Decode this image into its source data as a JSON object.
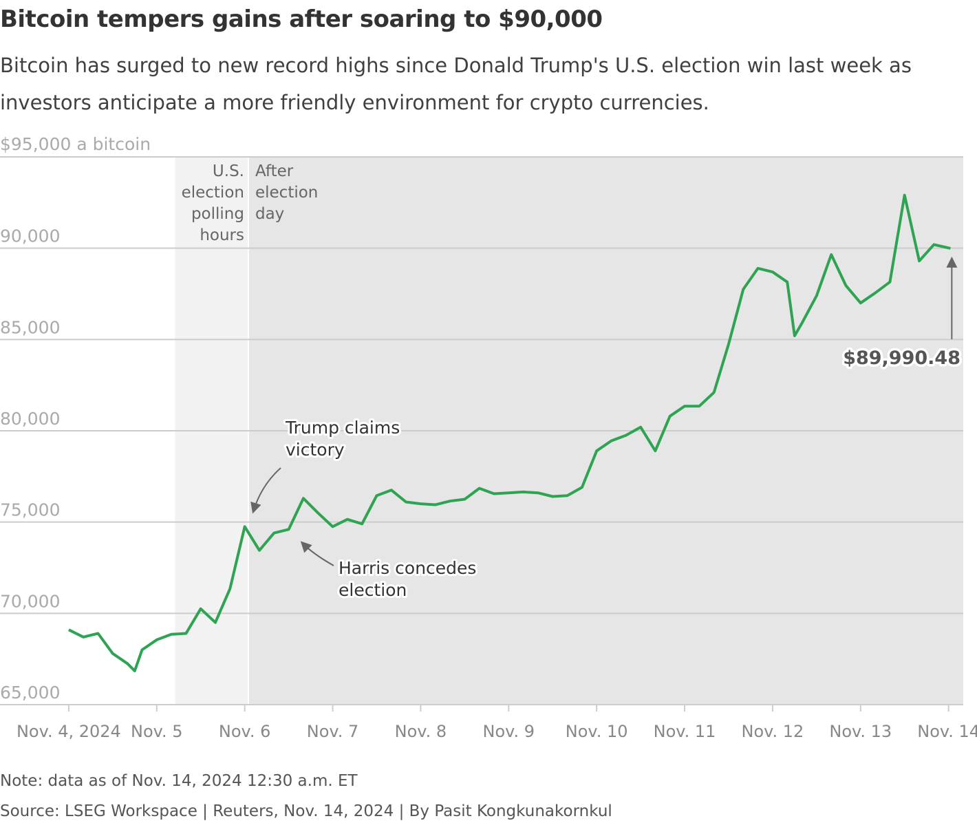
{
  "header": {
    "title": "Bitcoin tempers gains after soaring to $90,000",
    "subtitle": "Bitcoin has surged to new record highs since Donald Trump's U.S. election win last week as investors anticipate a more friendly environment for crypto currencies."
  },
  "footer": {
    "note": "Note: data as of Nov. 14, 2024 12:30 a.m. ET",
    "source": "Source: LSEG Workspace | Reuters, Nov. 14, 2024 | By Pasit Kongkunakornkul"
  },
  "chart_data": {
    "type": "line",
    "title": "Bitcoin tempers gains after soaring to $90,000",
    "ylabel": "$95,000 a bitcoin",
    "ylim": [
      65000,
      95000
    ],
    "xlim": [
      "2024-11-03T05:15",
      "2024-11-14T04:00"
    ],
    "grid": true,
    "line_color": "#2ea352",
    "yticks": [
      {
        "value": 65000,
        "label": "65,000"
      },
      {
        "value": 70000,
        "label": "70,000"
      },
      {
        "value": 75000,
        "label": "75,000"
      },
      {
        "value": 80000,
        "label": "80,000"
      },
      {
        "value": 85000,
        "label": "85,000"
      },
      {
        "value": 90000,
        "label": "90,000"
      }
    ],
    "xticks": [
      {
        "date": "2024-11-04T00:00",
        "label": "Nov. 4, 2024"
      },
      {
        "date": "2024-11-05T00:00",
        "label": "Nov. 5"
      },
      {
        "date": "2024-11-06T00:00",
        "label": "Nov. 6"
      },
      {
        "date": "2024-11-07T00:00",
        "label": "Nov. 7"
      },
      {
        "date": "2024-11-08T00:00",
        "label": "Nov. 8"
      },
      {
        "date": "2024-11-09T00:00",
        "label": "Nov. 9"
      },
      {
        "date": "2024-11-10T00:00",
        "label": "Nov. 10"
      },
      {
        "date": "2024-11-11T00:00",
        "label": "Nov. 11"
      },
      {
        "date": "2024-11-12T00:00",
        "label": "Nov. 12"
      },
      {
        "date": "2024-11-13T00:00",
        "label": "Nov. 13"
      },
      {
        "date": "2024-11-14T00:00",
        "label": "Nov. 14"
      }
    ],
    "shaded_regions": [
      {
        "start": "2024-11-05T05:00",
        "end": "2024-11-06T01:00",
        "color": "#f2f2f2",
        "label": [
          "U.S.",
          "election",
          "polling",
          "hours"
        ]
      },
      {
        "start": "2024-11-06T01:00",
        "end": "2024-11-14T04:00",
        "color": "#e6e6e6",
        "label": [
          "After",
          "election",
          "day"
        ]
      }
    ],
    "series": [
      {
        "x": [
          "2024-11-04T00:00",
          "2024-11-04T04:00",
          "2024-11-04T08:00",
          "2024-11-04T12:00",
          "2024-11-04T16:00",
          "2024-11-04T18:00",
          "2024-11-04T20:00",
          "2024-11-05T00:00",
          "2024-11-05T04:00",
          "2024-11-05T08:00",
          "2024-11-05T12:00",
          "2024-11-05T16:00",
          "2024-11-05T20:00",
          "2024-11-06T00:00",
          "2024-11-06T04:00",
          "2024-11-06T08:00",
          "2024-11-06T12:00",
          "2024-11-06T16:00",
          "2024-11-06T20:00",
          "2024-11-07T00:00",
          "2024-11-07T04:00",
          "2024-11-07T08:00",
          "2024-11-07T12:00",
          "2024-11-07T16:00",
          "2024-11-07T20:00",
          "2024-11-08T00:00",
          "2024-11-08T04:00",
          "2024-11-08T08:00",
          "2024-11-08T12:00",
          "2024-11-08T16:00",
          "2024-11-08T20:00",
          "2024-11-09T00:00",
          "2024-11-09T04:00",
          "2024-11-09T08:00",
          "2024-11-09T12:00",
          "2024-11-09T16:00",
          "2024-11-09T20:00",
          "2024-11-10T00:00",
          "2024-11-10T04:00",
          "2024-11-10T08:00",
          "2024-11-10T12:00",
          "2024-11-10T16:00",
          "2024-11-10T20:00",
          "2024-11-11T00:00",
          "2024-11-11T04:00",
          "2024-11-11T08:00",
          "2024-11-11T12:00",
          "2024-11-11T16:00",
          "2024-11-11T20:00",
          "2024-11-12T00:00",
          "2024-11-12T04:00",
          "2024-11-12T06:00",
          "2024-11-12T08:00",
          "2024-11-12T12:00",
          "2024-11-12T16:00",
          "2024-11-12T20:00",
          "2024-11-13T00:00",
          "2024-11-13T04:00",
          "2024-11-13T08:00",
          "2024-11-13T12:00",
          "2024-11-13T16:00",
          "2024-11-13T20:00",
          "2024-11-14T00:30"
        ],
        "y": [
          69100,
          68700,
          68900,
          67800,
          67250,
          66850,
          68000,
          68550,
          68850,
          68900,
          70250,
          69500,
          71350,
          74750,
          73450,
          74400,
          74600,
          76300,
          75500,
          74750,
          75150,
          74900,
          76450,
          76750,
          76100,
          76000,
          75950,
          76150,
          76250,
          76850,
          76550,
          76600,
          76650,
          76600,
          76400,
          76450,
          76900,
          78900,
          79450,
          79750,
          80200,
          78900,
          80800,
          81350,
          81350,
          82100,
          84750,
          87750,
          88900,
          88700,
          88150,
          85200,
          85900,
          87400,
          89650,
          87950,
          87000,
          87550,
          88150,
          92900,
          89300,
          90200,
          89990.48
        ]
      }
    ],
    "annotations": [
      {
        "text": [
          "Trump claims",
          "victory"
        ],
        "date": "2024-11-06T02:00",
        "value": 75300
      },
      {
        "text": [
          "Harris concedes",
          "election"
        ],
        "date": "2024-11-06T15:00",
        "value": 74300
      },
      {
        "text": [
          "$89,990.48"
        ],
        "date": "2024-11-14T00:30",
        "value": 89990.48
      }
    ]
  }
}
